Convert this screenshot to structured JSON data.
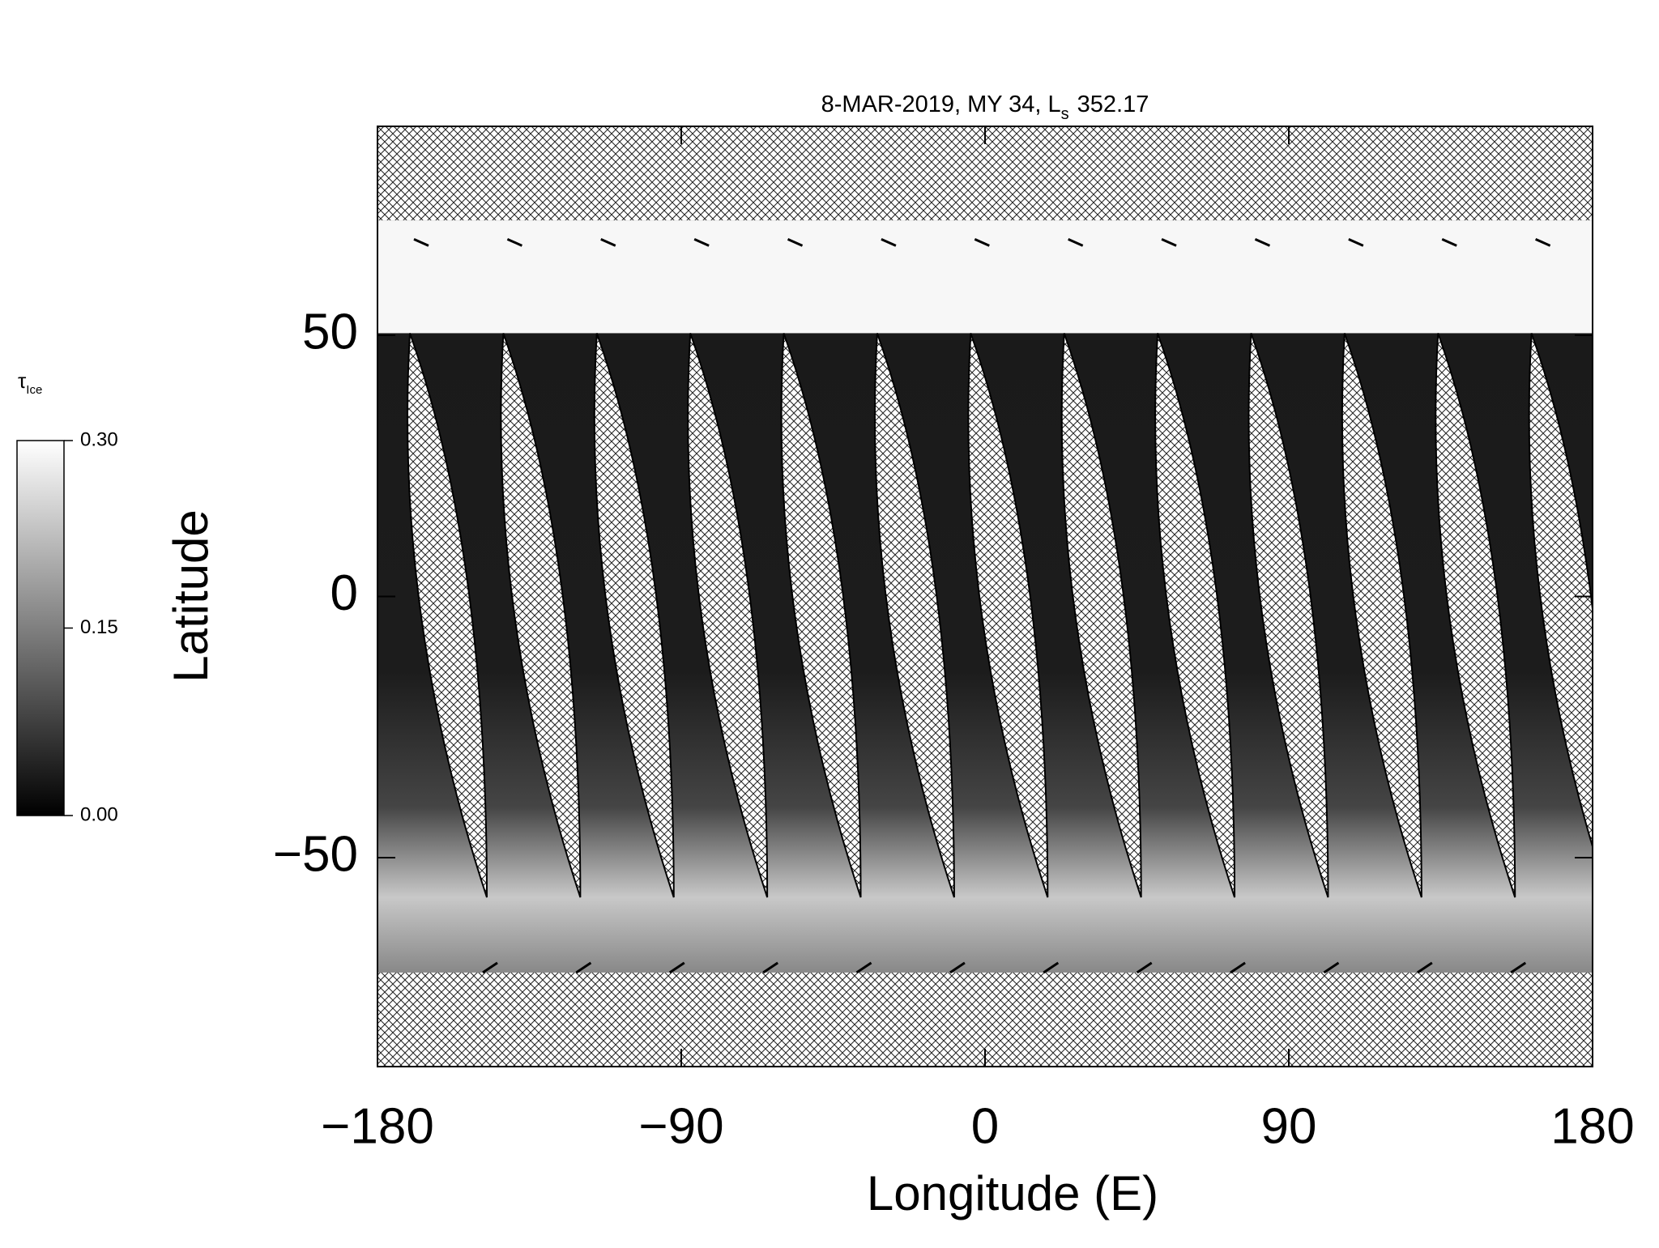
{
  "chart_data": {
    "type": "map",
    "title": "8-MAR-2019, MY 34,  L",
    "title_subscript": "s",
    "title_suffix": "352.17",
    "xlabel": "Longitude (E)",
    "ylabel": "Latitude",
    "xlim": [
      -180,
      180
    ],
    "xticks": [
      {
        "value": -180,
        "label": "−180"
      },
      {
        "value": -90,
        "label": "−90"
      },
      0,
      90,
      180
    ],
    "ylim": [
      -90,
      90
    ],
    "yticks": [
      {
        "value": -50,
        "label": "−50"
      },
      0,
      50
    ],
    "colorbar": {
      "label": "τ",
      "label_subscript": "Ice",
      "lim": [
        0,
        0.3
      ],
      "ticks": [
        {
          "value": 0,
          "label": "0.00"
        },
        {
          "value": 0.15,
          "label": "0.15"
        },
        {
          "value": 0.3,
          "label": "0.30"
        }
      ]
    }
  }
}
